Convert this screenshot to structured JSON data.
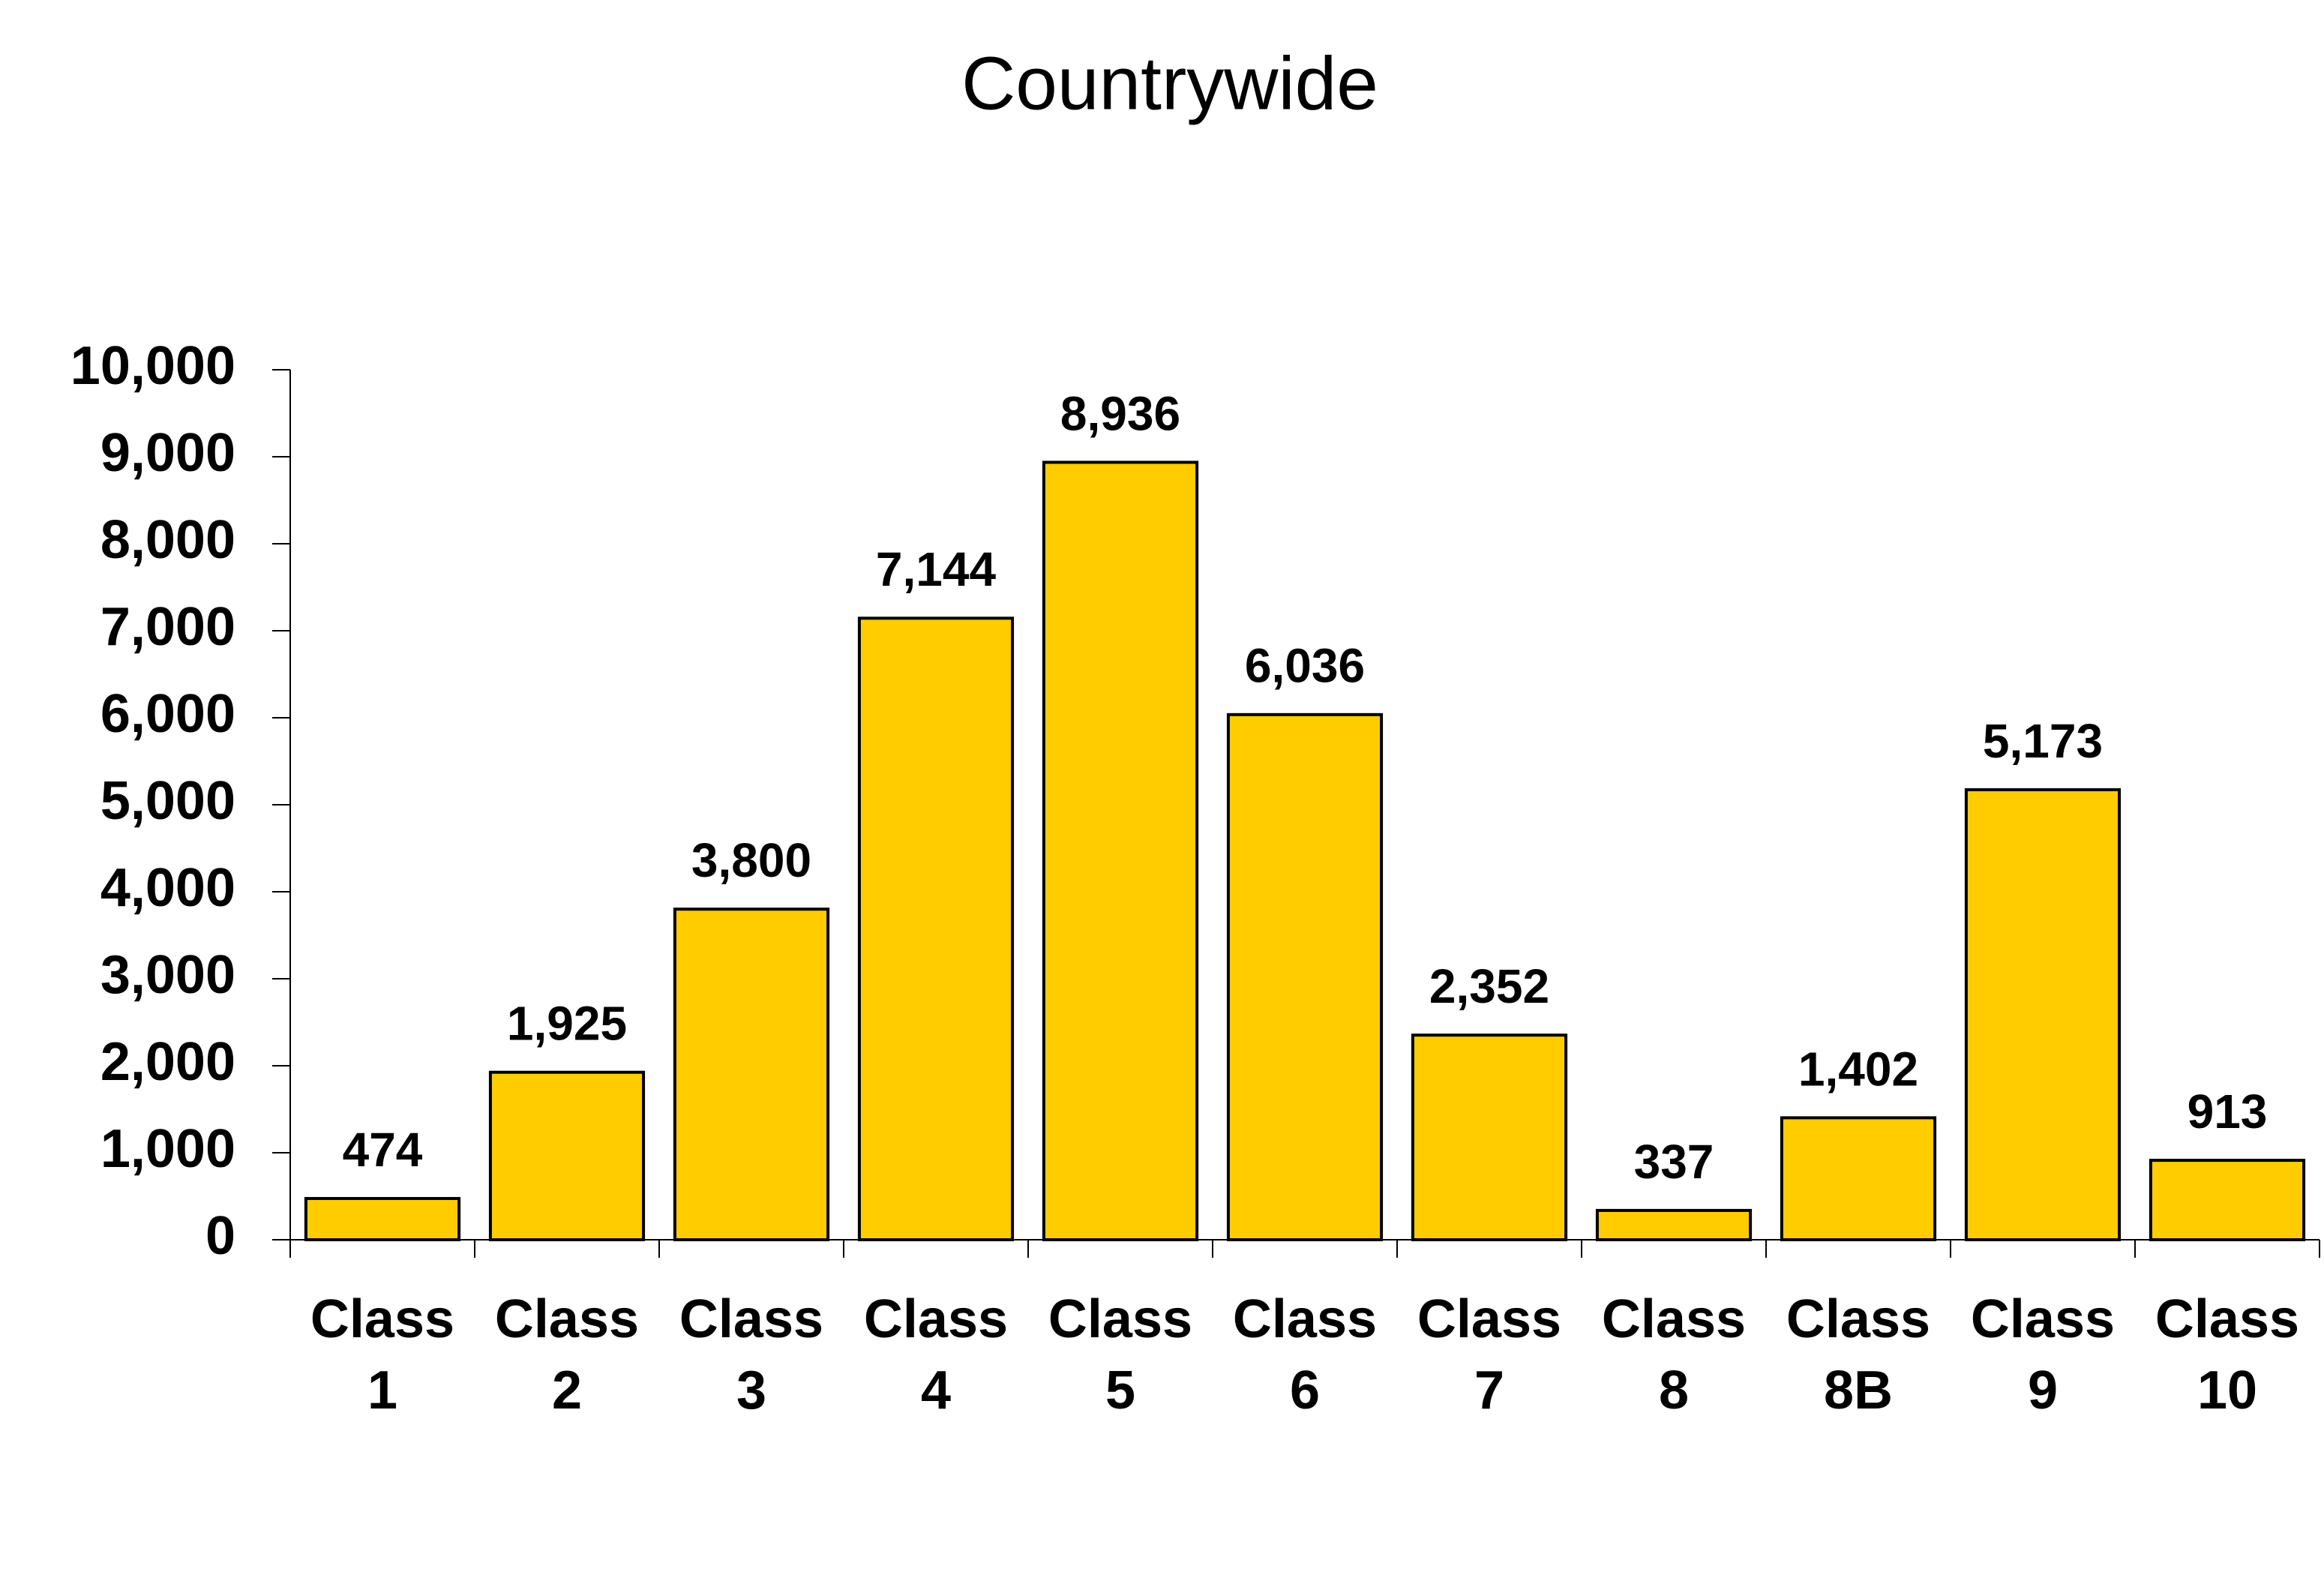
{
  "chart_data": {
    "type": "bar",
    "title": "Countrywide",
    "categories": [
      "Class 1",
      "Class 2",
      "Class 3",
      "Class 4",
      "Class 5",
      "Class 6",
      "Class 7",
      "Class 8",
      "Class 8B",
      "Class 9",
      "Class 10"
    ],
    "values": [
      474,
      1925,
      3800,
      7144,
      8936,
      6036,
      2352,
      337,
      1402,
      5173,
      913
    ],
    "value_labels": [
      "474",
      "1,925",
      "3,800",
      "7,144",
      "8,936",
      "6,036",
      "2,352",
      "337",
      "1,402",
      "5,173",
      "913"
    ],
    "color": "#ffcc00",
    "ylim": [
      0,
      10000
    ],
    "yticks": [
      0,
      {
        "value": 1000,
        "label": "1,000"
      },
      {
        "value": 2000,
        "label": "2,000"
      },
      {
        "value": 3000,
        "label": "3,000"
      },
      {
        "value": 4000,
        "label": "4,000"
      },
      {
        "value": 5000,
        "label": "5,000"
      },
      {
        "value": 6000,
        "label": "6,000"
      },
      {
        "value": 7000,
        "label": "7,000"
      },
      {
        "value": 8000,
        "label": "8,000"
      },
      {
        "value": 9000,
        "label": "9,000"
      },
      {
        "value": 10000,
        "label": "10,000"
      }
    ],
    "grid": false
  }
}
